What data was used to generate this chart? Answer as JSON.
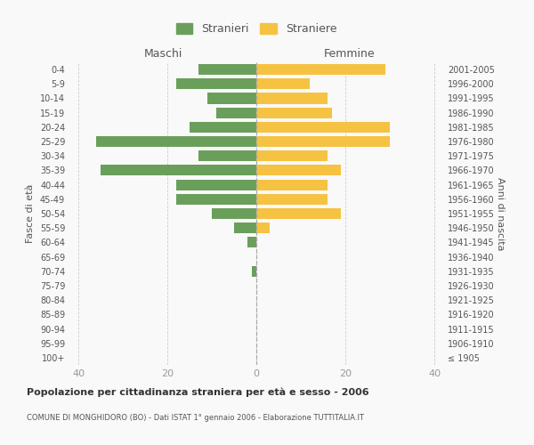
{
  "age_groups": [
    "100+",
    "95-99",
    "90-94",
    "85-89",
    "80-84",
    "75-79",
    "70-74",
    "65-69",
    "60-64",
    "55-59",
    "50-54",
    "45-49",
    "40-44",
    "35-39",
    "30-34",
    "25-29",
    "20-24",
    "15-19",
    "10-14",
    "5-9",
    "0-4"
  ],
  "birth_years": [
    "≤ 1905",
    "1906-1910",
    "1911-1915",
    "1916-1920",
    "1921-1925",
    "1926-1930",
    "1931-1935",
    "1936-1940",
    "1941-1945",
    "1946-1950",
    "1951-1955",
    "1956-1960",
    "1961-1965",
    "1966-1970",
    "1971-1975",
    "1976-1980",
    "1981-1985",
    "1986-1990",
    "1991-1995",
    "1996-2000",
    "2001-2005"
  ],
  "maschi": [
    0,
    0,
    0,
    0,
    0,
    0,
    1,
    0,
    2,
    5,
    10,
    18,
    18,
    35,
    13,
    36,
    15,
    9,
    11,
    18,
    13
  ],
  "femmine": [
    0,
    0,
    0,
    0,
    0,
    0,
    0,
    0,
    0,
    3,
    19,
    16,
    16,
    19,
    16,
    30,
    30,
    17,
    16,
    12,
    29
  ],
  "maschi_color": "#6a9f5b",
  "femmine_color": "#f5c242",
  "background_color": "#f9f9f9",
  "grid_color": "#cccccc",
  "bar_height": 0.75,
  "xlim": 42,
  "title": "Popolazione per cittadinanza straniera per età e sesso - 2006",
  "subtitle": "COMUNE DI MONGHIDORO (BO) - Dati ISTAT 1° gennaio 2006 - Elaborazione TUTTITALIA.IT",
  "ylabel_left": "Fasce di età",
  "ylabel_right": "Anni di nascita",
  "xlabel_left": "Maschi",
  "xlabel_right": "Femmine",
  "legend_stranieri": "Stranieri",
  "legend_straniere": "Straniere",
  "tick_color": "#999999",
  "label_color": "#555555",
  "axis_label_color": "#555555"
}
